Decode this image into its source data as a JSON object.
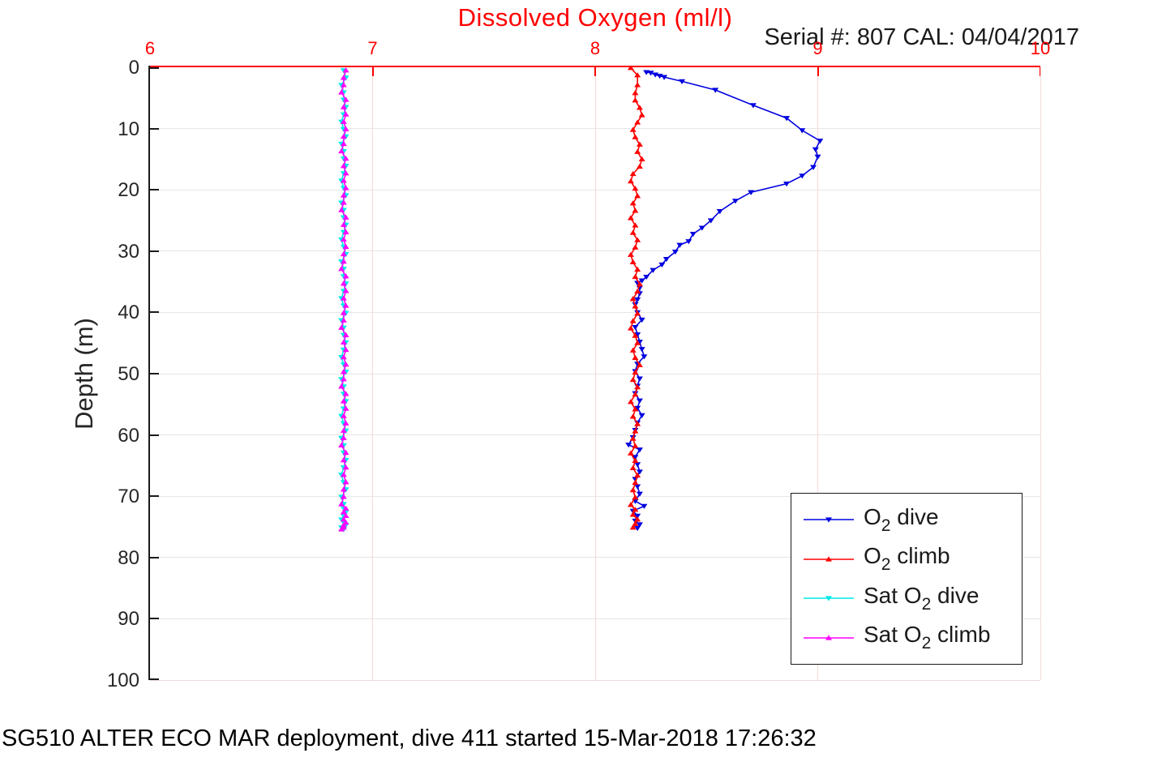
{
  "theme": {
    "title_color": "#ff0000",
    "x_axis_color": "#ff0000",
    "y_axis_color": "#1a1a1a",
    "grid_h_color": "#e6e6e6",
    "grid_v_color": "#f6d8d8",
    "frame_light_color": "#f2dcdc",
    "text_color": "#262626"
  },
  "chart_data": {
    "type": "line",
    "title": "Dissolved Oxygen (ml/l)",
    "annotation": "Serial #: 807  CAL: 04/04/2017",
    "caption": "SG510 ALTER ECO MAR deployment, dive 411 started 15-Mar-2018 17:26:32",
    "xlabel": "",
    "ylabel": "Depth (m)",
    "x_axis_position": "top",
    "y_inverted": true,
    "xlim": [
      6,
      10
    ],
    "ylim": [
      0,
      100
    ],
    "x_ticks": [
      6,
      7,
      8,
      9,
      10
    ],
    "y_ticks": [
      0,
      10,
      20,
      30,
      40,
      50,
      60,
      70,
      80,
      90,
      100
    ],
    "grid": true,
    "legend": {
      "position": "lower-right",
      "items": [
        {
          "pre": "O",
          "sub": "2",
          "post": " dive",
          "color": "#0000e0",
          "marker": "v"
        },
        {
          "pre": "O",
          "sub": "2",
          "post": " climb",
          "color": "#ff0000",
          "marker": "^"
        },
        {
          "pre": "Sat O",
          "sub": "2",
          "post": " dive",
          "color": "#00e8e8",
          "marker": "v"
        },
        {
          "pre": "Sat O",
          "sub": "2",
          "post": " climb",
          "color": "#ff00ff",
          "marker": "^"
        }
      ]
    },
    "series": [
      {
        "name": "O2 dive",
        "color": "#0000e0",
        "marker": "v",
        "depths": [
          0.8,
          0.9,
          1.2,
          1.4,
          1.6,
          2.3,
          3.7,
          6.2,
          8.3,
          10.3,
          12.0,
          13.4,
          14.6,
          16.3,
          17.7,
          19.0,
          20.4,
          21.8,
          23.5,
          25.0,
          26.2,
          27.2,
          28.4,
          29.0,
          30.1,
          31.3,
          32.2,
          33.1,
          34.2,
          34.8,
          35.2,
          36.0,
          36.9,
          37.9,
          38.7,
          40.0,
          41.2,
          42.4,
          43.6,
          44.8,
          46.0,
          47.2,
          48.4,
          49.6,
          50.8,
          52.0,
          53.2,
          54.4,
          55.6,
          56.8,
          58.0,
          59.2,
          60.4,
          61.6,
          62.4,
          63.6,
          64.8,
          66.0,
          67.2,
          68.4,
          69.6,
          70.8,
          71.6,
          72.4,
          73.2,
          74.0,
          74.6,
          75.2
        ],
        "values": [
          8.23,
          8.25,
          8.27,
          8.29,
          8.31,
          8.39,
          8.54,
          8.71,
          8.86,
          8.93,
          9.01,
          8.99,
          9.0,
          8.98,
          8.93,
          8.86,
          8.7,
          8.63,
          8.56,
          8.52,
          8.48,
          8.44,
          8.42,
          8.38,
          8.36,
          8.32,
          8.3,
          8.26,
          8.23,
          8.21,
          8.19,
          8.2,
          8.2,
          8.19,
          8.18,
          8.19,
          8.21,
          8.18,
          8.19,
          8.2,
          8.21,
          8.22,
          8.19,
          8.18,
          8.2,
          8.19,
          8.18,
          8.2,
          8.19,
          8.21,
          8.19,
          8.18,
          8.17,
          8.15,
          8.2,
          8.18,
          8.19,
          8.2,
          8.18,
          8.19,
          8.2,
          8.18,
          8.22,
          8.17,
          8.19,
          8.18,
          8.2,
          8.19
        ]
      },
      {
        "name": "O2 climb",
        "color": "#ff0000",
        "marker": "^",
        "depths": [
          0.1,
          1.3,
          2.9,
          4.2,
          5.4,
          6.6,
          7.8,
          9.0,
          10.2,
          11.4,
          12.6,
          13.8,
          15.0,
          16.2,
          17.4,
          18.6,
          19.8,
          21.0,
          22.2,
          23.4,
          24.6,
          25.8,
          27.0,
          28.2,
          29.4,
          30.6,
          31.8,
          33.0,
          34.2,
          35.4,
          36.6,
          37.8,
          39.0,
          40.2,
          41.4,
          42.6,
          43.8,
          45.0,
          46.2,
          47.4,
          48.6,
          49.8,
          51.0,
          52.2,
          53.4,
          54.6,
          55.8,
          57.0,
          58.2,
          59.4,
          60.6,
          61.8,
          63.0,
          64.2,
          65.4,
          66.6,
          67.8,
          69.0,
          70.2,
          71.4,
          72.2,
          73.0,
          73.8,
          74.5,
          75.1
        ],
        "values": [
          8.16,
          8.19,
          8.19,
          8.18,
          8.18,
          8.2,
          8.21,
          8.19,
          8.17,
          8.18,
          8.2,
          8.19,
          8.21,
          8.2,
          8.17,
          8.16,
          8.18,
          8.19,
          8.17,
          8.18,
          8.16,
          8.18,
          8.17,
          8.19,
          8.18,
          8.16,
          8.17,
          8.19,
          8.18,
          8.2,
          8.19,
          8.17,
          8.18,
          8.19,
          8.17,
          8.16,
          8.18,
          8.19,
          8.17,
          8.18,
          8.2,
          8.18,
          8.17,
          8.19,
          8.18,
          8.16,
          8.18,
          8.17,
          8.19,
          8.18,
          8.17,
          8.18,
          8.16,
          8.18,
          8.17,
          8.19,
          8.18,
          8.17,
          8.18,
          8.16,
          8.18,
          8.17,
          8.19,
          8.18,
          8.17
        ]
      },
      {
        "name": "Sat O2 dive",
        "color": "#00e8e8",
        "marker": "v",
        "depths": [
          0.5,
          1.7,
          2.9,
          4.1,
          5.3,
          6.5,
          7.7,
          8.9,
          10.1,
          11.3,
          12.5,
          13.7,
          14.9,
          16.1,
          17.3,
          18.5,
          19.7,
          20.9,
          22.1,
          23.3,
          24.5,
          25.7,
          26.9,
          28.1,
          29.3,
          30.5,
          31.7,
          32.9,
          34.1,
          35.3,
          36.5,
          37.7,
          38.9,
          40.1,
          41.3,
          42.5,
          43.7,
          44.9,
          46.1,
          47.3,
          48.5,
          49.7,
          50.9,
          52.1,
          53.3,
          54.5,
          55.7,
          56.9,
          58.1,
          59.3,
          60.5,
          61.7,
          62.9,
          64.1,
          65.3,
          66.5,
          67.7,
          68.9,
          70.1,
          71.3,
          72.0,
          72.6,
          73.2,
          73.8,
          74.3,
          74.7,
          75.1,
          75.4
        ],
        "values": [
          6.87,
          6.88,
          6.86,
          6.87,
          6.87,
          6.88,
          6.87,
          6.86,
          6.87,
          6.88,
          6.86,
          6.87,
          6.87,
          6.88,
          6.87,
          6.86,
          6.87,
          6.88,
          6.86,
          6.87,
          6.87,
          6.88,
          6.87,
          6.86,
          6.87,
          6.88,
          6.86,
          6.87,
          6.87,
          6.88,
          6.87,
          6.86,
          6.87,
          6.88,
          6.86,
          6.87,
          6.87,
          6.88,
          6.87,
          6.86,
          6.87,
          6.88,
          6.86,
          6.87,
          6.87,
          6.88,
          6.87,
          6.86,
          6.87,
          6.88,
          6.86,
          6.87,
          6.87,
          6.88,
          6.87,
          6.86,
          6.87,
          6.88,
          6.86,
          6.87,
          6.87,
          6.88,
          6.87,
          6.86,
          6.87,
          6.88,
          6.86,
          6.87
        ]
      },
      {
        "name": "Sat O2 climb",
        "color": "#ff00ff",
        "marker": "^",
        "depths": [
          0.5,
          1.7,
          2.9,
          4.1,
          5.3,
          6.5,
          7.7,
          8.9,
          10.1,
          11.3,
          12.5,
          13.7,
          14.9,
          16.1,
          17.3,
          18.5,
          19.7,
          20.9,
          22.1,
          23.3,
          24.5,
          25.7,
          26.9,
          28.1,
          29.3,
          30.5,
          31.7,
          32.9,
          34.1,
          35.3,
          36.5,
          37.7,
          38.9,
          40.1,
          41.3,
          42.5,
          43.7,
          44.9,
          46.1,
          47.3,
          48.5,
          49.7,
          50.9,
          52.1,
          53.3,
          54.5,
          55.7,
          56.9,
          58.1,
          59.3,
          60.5,
          61.7,
          62.9,
          64.1,
          65.3,
          66.5,
          67.7,
          68.9,
          70.1,
          71.3,
          72.0,
          72.6,
          73.2,
          73.8,
          74.3,
          74.7,
          75.1,
          75.4
        ],
        "values": [
          6.88,
          6.87,
          6.87,
          6.86,
          6.88,
          6.87,
          6.88,
          6.87,
          6.88,
          6.87,
          6.87,
          6.86,
          6.88,
          6.87,
          6.88,
          6.87,
          6.88,
          6.87,
          6.87,
          6.86,
          6.88,
          6.87,
          6.88,
          6.87,
          6.88,
          6.87,
          6.87,
          6.86,
          6.88,
          6.87,
          6.88,
          6.87,
          6.88,
          6.87,
          6.87,
          6.86,
          6.88,
          6.87,
          6.88,
          6.87,
          6.88,
          6.87,
          6.87,
          6.86,
          6.88,
          6.87,
          6.88,
          6.87,
          6.88,
          6.87,
          6.87,
          6.86,
          6.88,
          6.87,
          6.88,
          6.87,
          6.88,
          6.87,
          6.87,
          6.86,
          6.88,
          6.87,
          6.88,
          6.87,
          6.88,
          6.87,
          6.87,
          6.86
        ]
      }
    ]
  }
}
